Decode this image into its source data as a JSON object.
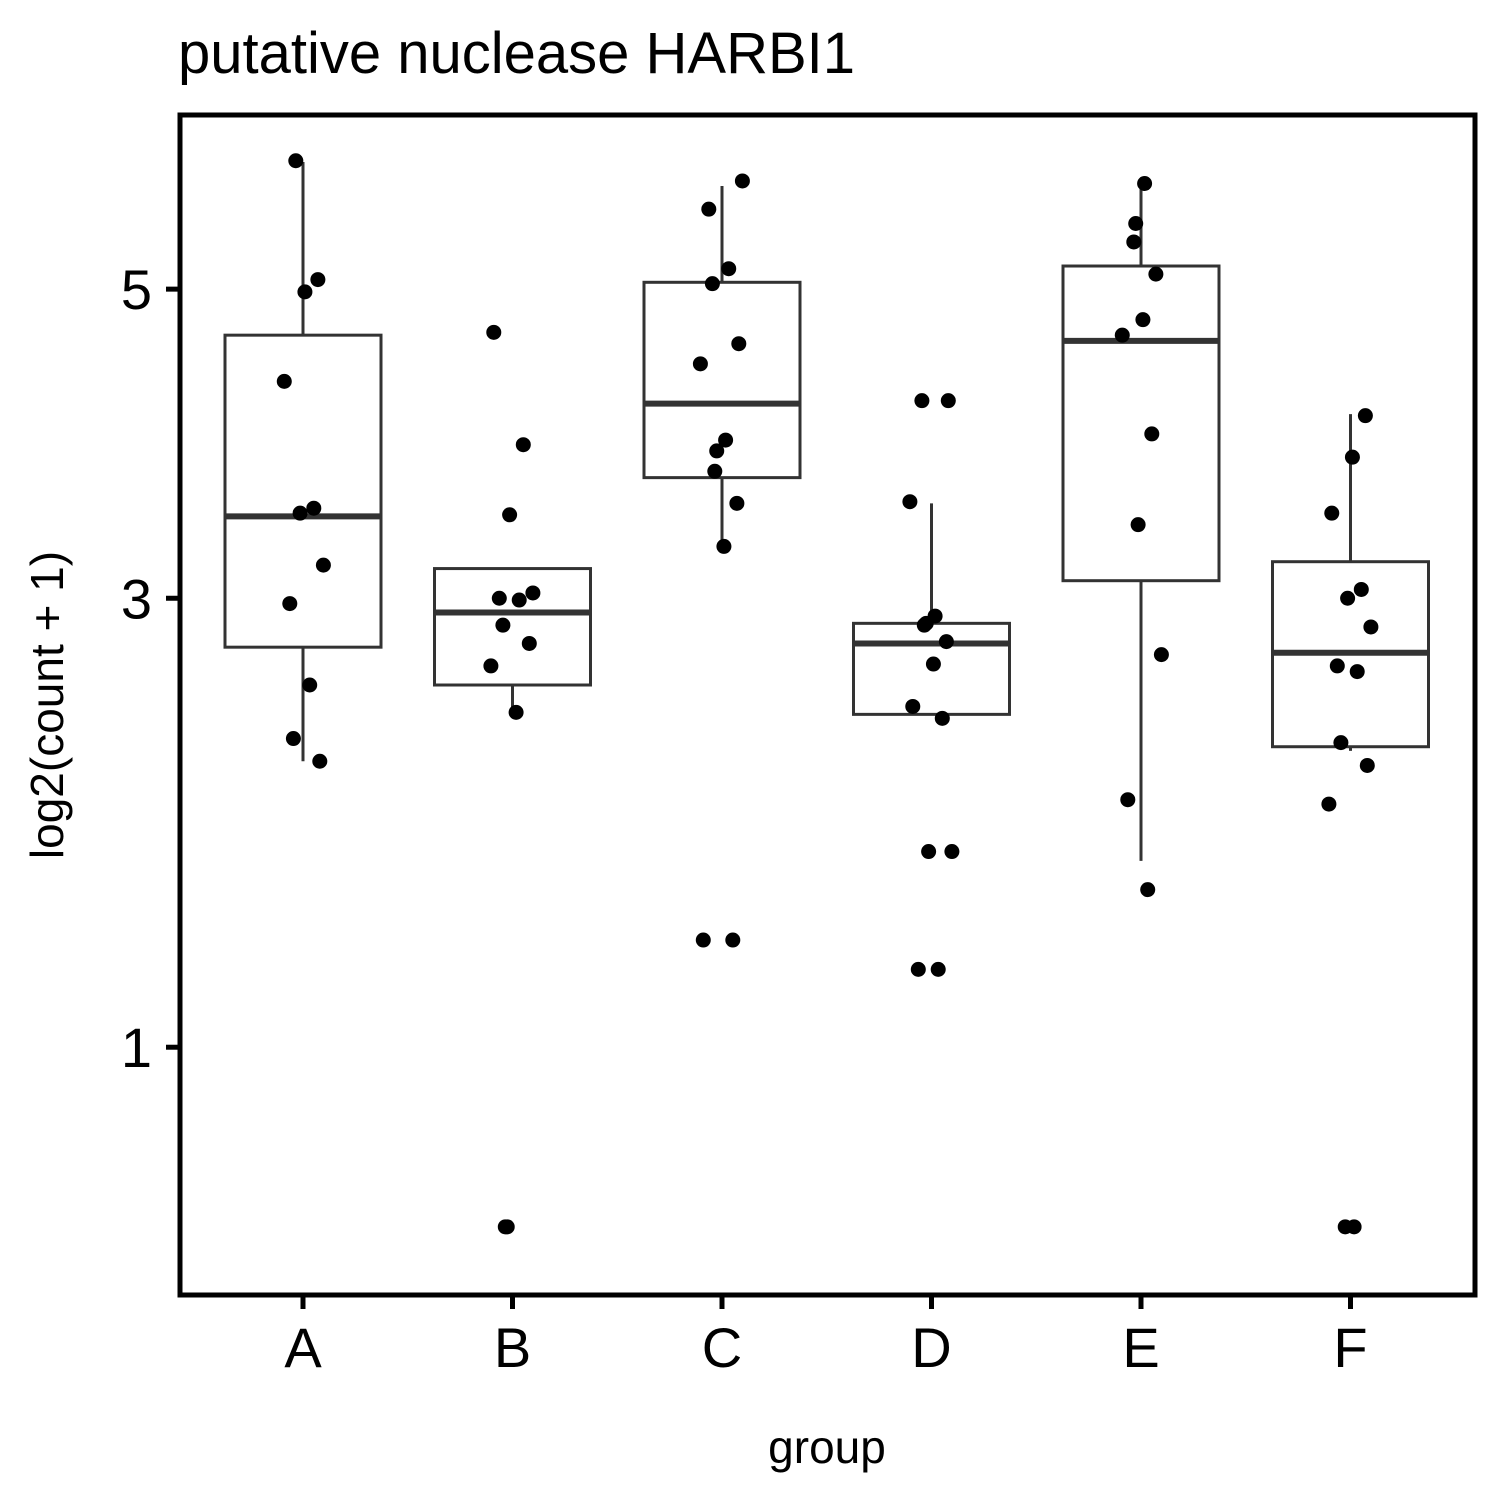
{
  "chart_data": {
    "type": "box",
    "title": "putative nuclease HARBI1",
    "xlabel": "group",
    "ylabel": "log2(count + 1)",
    "y_scale": "sqrt",
    "y_ticks": [
      1,
      3,
      5
    ],
    "ylim": [
      0.3,
      6.2
    ],
    "grid": false,
    "legend": "none",
    "categories": [
      "A",
      "B",
      "C",
      "D",
      "E",
      "F"
    ],
    "boxes": [
      {
        "group": "A",
        "whisker_low": 2.15,
        "q1": 2.73,
        "median": 3.48,
        "q3": 4.67,
        "whisker_high": 5.97
      },
      {
        "group": "B",
        "whisker_low": 2.38,
        "q1": 2.53,
        "median": 2.92,
        "q3": 3.17,
        "whisker_high": 3.17
      },
      {
        "group": "C",
        "whisker_low": 3.28,
        "q1": 3.72,
        "median": 4.2,
        "q3": 5.05,
        "whisker_high": 5.78
      },
      {
        "group": "D",
        "whisker_low": 2.38,
        "q1": 2.38,
        "median": 2.75,
        "q3": 2.86,
        "whisker_high": 3.56
      },
      {
        "group": "E",
        "whisker_low": 1.7,
        "q1": 3.1,
        "median": 4.63,
        "q3": 5.17,
        "whisker_high": 5.78
      },
      {
        "group": "F",
        "whisker_low": 2.2,
        "q1": 2.22,
        "median": 2.7,
        "q3": 3.21,
        "whisker_high": 4.13
      }
    ],
    "points": [
      {
        "group": "A",
        "values": [
          5.98,
          5.07,
          4.98,
          4.35,
          3.53,
          3.5,
          3.19,
          2.97,
          2.53,
          2.26,
          2.15
        ]
      },
      {
        "group": "B",
        "values": [
          4.69,
          3.93,
          3.49,
          3.03,
          3.0,
          2.99,
          2.85,
          2.75,
          2.63,
          2.39,
          0.5,
          0.5
        ]
      },
      {
        "group": "C",
        "values": [
          5.82,
          5.6,
          5.15,
          5.04,
          4.61,
          4.47,
          3.96,
          3.89,
          3.76,
          3.56,
          3.3,
          1.38,
          1.38
        ]
      },
      {
        "group": "D",
        "values": [
          4.22,
          4.22,
          3.57,
          2.9,
          2.86,
          2.85,
          2.76,
          2.64,
          2.42,
          2.36,
          1.74,
          1.74,
          1.27,
          1.27
        ]
      },
      {
        "group": "E",
        "values": [
          5.8,
          5.49,
          5.35,
          5.11,
          4.78,
          4.67,
          4.0,
          3.43,
          2.69,
          1.97,
          1.58
        ]
      },
      {
        "group": "F",
        "values": [
          4.12,
          3.85,
          3.5,
          3.05,
          3.0,
          2.84,
          2.63,
          2.6,
          2.24,
          2.13,
          1.95,
          0.5,
          0.5
        ]
      }
    ]
  }
}
